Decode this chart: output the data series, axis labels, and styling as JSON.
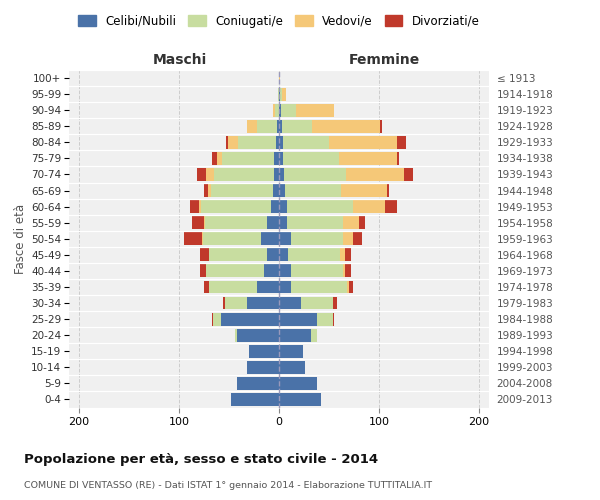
{
  "age_groups": [
    "0-4",
    "5-9",
    "10-14",
    "15-19",
    "20-24",
    "25-29",
    "30-34",
    "35-39",
    "40-44",
    "45-49",
    "50-54",
    "55-59",
    "60-64",
    "65-69",
    "70-74",
    "75-79",
    "80-84",
    "85-89",
    "90-94",
    "95-99",
    "100+"
  ],
  "birth_years": [
    "2009-2013",
    "2004-2008",
    "1999-2003",
    "1994-1998",
    "1989-1993",
    "1984-1988",
    "1979-1983",
    "1974-1978",
    "1969-1973",
    "1964-1968",
    "1959-1963",
    "1954-1958",
    "1949-1953",
    "1944-1948",
    "1939-1943",
    "1934-1938",
    "1929-1933",
    "1924-1928",
    "1919-1923",
    "1914-1918",
    "≤ 1913"
  ],
  "maschi_celibi": [
    48,
    42,
    32,
    30,
    42,
    58,
    32,
    22,
    15,
    12,
    18,
    12,
    8,
    6,
    5,
    5,
    3,
    2,
    0,
    0,
    0
  ],
  "maschi_coniugati": [
    0,
    0,
    0,
    0,
    2,
    8,
    22,
    48,
    58,
    58,
    58,
    62,
    70,
    62,
    60,
    52,
    38,
    20,
    4,
    1,
    0
  ],
  "maschi_vedovi": [
    0,
    0,
    0,
    0,
    0,
    0,
    0,
    0,
    0,
    0,
    1,
    1,
    2,
    3,
    8,
    5,
    10,
    10,
    2,
    0,
    0
  ],
  "maschi_divorziati": [
    0,
    0,
    0,
    0,
    0,
    1,
    2,
    5,
    6,
    9,
    18,
    12,
    9,
    4,
    9,
    5,
    2,
    0,
    0,
    0,
    0
  ],
  "femmine_nubili": [
    42,
    38,
    26,
    24,
    32,
    38,
    22,
    12,
    12,
    9,
    12,
    8,
    8,
    6,
    5,
    4,
    4,
    3,
    2,
    1,
    0
  ],
  "femmine_coniugate": [
    0,
    0,
    0,
    0,
    6,
    16,
    32,
    56,
    52,
    52,
    52,
    56,
    66,
    56,
    62,
    56,
    46,
    30,
    15,
    2,
    0
  ],
  "femmine_vedove": [
    0,
    0,
    0,
    0,
    0,
    0,
    0,
    2,
    2,
    5,
    10,
    16,
    32,
    46,
    58,
    58,
    68,
    68,
    38,
    4,
    1
  ],
  "femmine_divorziate": [
    0,
    0,
    0,
    0,
    0,
    1,
    4,
    4,
    6,
    6,
    9,
    6,
    12,
    2,
    9,
    2,
    9,
    2,
    0,
    0,
    0
  ],
  "colors_celibi": "#4a72a8",
  "colors_coniugati": "#c8dda0",
  "colors_vedovi": "#f5c878",
  "colors_divorziati": "#c0392b",
  "xlim": 210,
  "title": "Popolazione per età, sesso e stato civile - 2014",
  "subtitle": "COMUNE DI VENTASSO (RE) - Dati ISTAT 1° gennaio 2014 - Elaborazione TUTTITALIA.IT",
  "ylabel_left": "Fasce di età",
  "xlabel_maschi": "Maschi",
  "xlabel_femmine": "Femmine",
  "bg_axes": "#f0f0f0",
  "bg_fig": "#ffffff",
  "grid_color": "#cccccc",
  "legend_labels": [
    "Celibi/Nubili",
    "Coniugati/e",
    "Vedovi/e",
    "Divorziati/e"
  ]
}
